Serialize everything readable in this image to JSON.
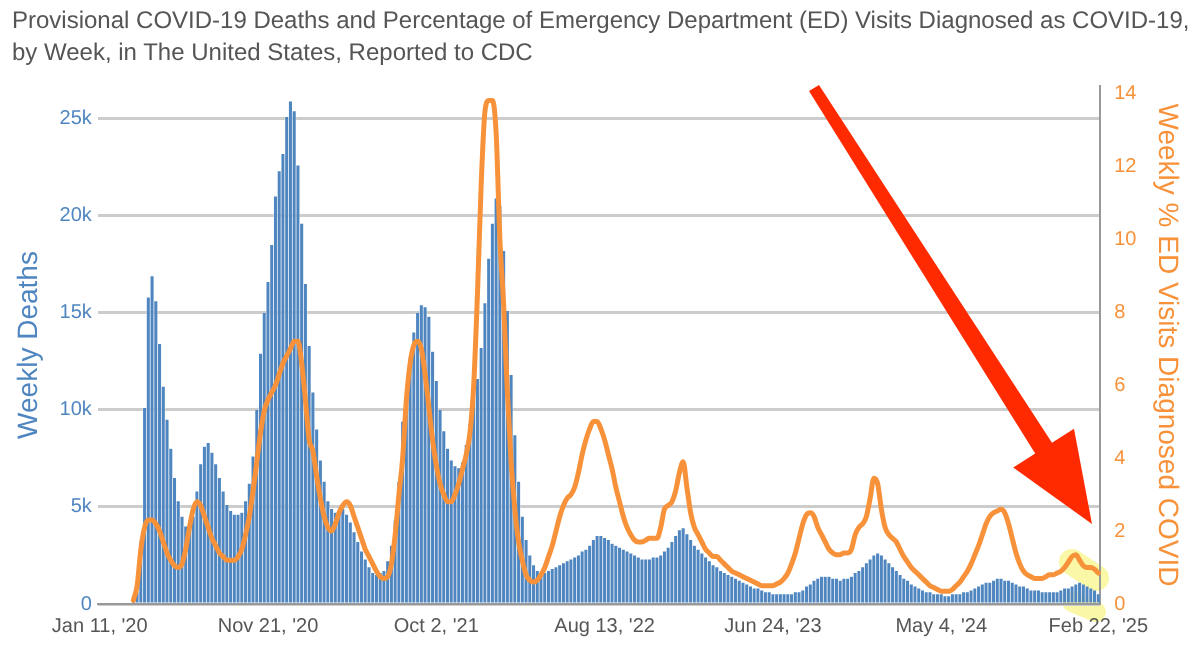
{
  "chart_data": {
    "type": "bar",
    "title": "Provisional COVID-19 Deaths and Percentage of Emergency Department (ED) Visits Diagnosed as COVID-19, by Week, in The United States, Reported to CDC",
    "ylabel": "Weekly Deaths",
    "y2label": "Weekly % ED Visits Diagnosed COVID",
    "categories": [
      "Jan 11, '20",
      null,
      null,
      null,
      null,
      null,
      null,
      null,
      null,
      null,
      null,
      null,
      null,
      null,
      null,
      null,
      null,
      null,
      null,
      null,
      null,
      null,
      null,
      null,
      null,
      null,
      null,
      null,
      null,
      null,
      null,
      null,
      null,
      null,
      null,
      null,
      null,
      null,
      null,
      null,
      null,
      null,
      null,
      null,
      null,
      "Nov 21, '20",
      null,
      null,
      null,
      null,
      null,
      null,
      null,
      null,
      null,
      null,
      null,
      null,
      null,
      null,
      null,
      null,
      null,
      null,
      null,
      null,
      null,
      null,
      null,
      null,
      null,
      null,
      null,
      null,
      null,
      null,
      null,
      null,
      null,
      null,
      null,
      null,
      null,
      null,
      null,
      null,
      null,
      null,
      null,
      null,
      "Oct 2, '21",
      null,
      null,
      null,
      null,
      null,
      null,
      null,
      null,
      null,
      null,
      null,
      null,
      null,
      null,
      null,
      null,
      null,
      null,
      null,
      null,
      null,
      null,
      null,
      null,
      null,
      null,
      null,
      null,
      null,
      null,
      null,
      null,
      null,
      null,
      null,
      null,
      null,
      null,
      null,
      null,
      null,
      null,
      null,
      null,
      "Aug 13, '22",
      null,
      null,
      null,
      null,
      null,
      null,
      null,
      null,
      null,
      null,
      null,
      null,
      null,
      null,
      null,
      null,
      null,
      null,
      null,
      null,
      null,
      null,
      null,
      null,
      null,
      null,
      null,
      null,
      null,
      null,
      null,
      null,
      null,
      null,
      null,
      null,
      null,
      null,
      null,
      null,
      null,
      null,
      null,
      null,
      "Jun 24, '23",
      null,
      null,
      null,
      null,
      null,
      null,
      null,
      null,
      null,
      null,
      null,
      null,
      null,
      null,
      null,
      null,
      null,
      null,
      null,
      null,
      null,
      null,
      null,
      null,
      null,
      null,
      null,
      null,
      null,
      null,
      null,
      null,
      null,
      null,
      null,
      null,
      null,
      null,
      null,
      null,
      null,
      null,
      null,
      null,
      "May 4, '24",
      null,
      null,
      null,
      null,
      null,
      null,
      null,
      null,
      null,
      null,
      null,
      null,
      null,
      null,
      null,
      null,
      null,
      null,
      null,
      null,
      null,
      null,
      null,
      null,
      null,
      null,
      null,
      null,
      null,
      null,
      null,
      null,
      null,
      null,
      null,
      null,
      null,
      null,
      null,
      null,
      null,
      "Feb 22, '25"
    ],
    "series": [
      {
        "color": "#4f86c0",
        "values": [
          0,
          0,
          0,
          0,
          0,
          0,
          0,
          0,
          0,
          100,
          600,
          3200,
          10100,
          15800,
          16900,
          15600,
          13400,
          11200,
          9500,
          8000,
          6500,
          5300,
          4500,
          4000,
          3900,
          4500,
          5800,
          7200,
          8100,
          8300,
          7800,
          7200,
          6500,
          5800,
          5100,
          4800,
          4600,
          4600,
          4700,
          5300,
          6200,
          7600,
          10000,
          12900,
          15000,
          16600,
          18500,
          21000,
          22300,
          23200,
          25100,
          25900,
          25400,
          22600,
          19600,
          16500,
          13300,
          10900,
          9000,
          7400,
          6300,
          5300,
          4900,
          4700,
          4800,
          4900,
          4600,
          4200,
          3700,
          3200,
          2700,
          2300,
          1900,
          1600,
          1500,
          1600,
          1700,
          2200,
          3000,
          4300,
          6300,
          9400,
          10800,
          12700,
          14000,
          15000,
          15400,
          15300,
          14800,
          13000,
          11500,
          10000,
          8900,
          8000,
          7400,
          7100,
          7000,
          7300,
          8200,
          9300,
          10500,
          11600,
          13200,
          15500,
          17800,
          19600,
          20900,
          20500,
          18200,
          15100,
          11800,
          8700,
          6300,
          4500,
          3300,
          2500,
          2000,
          1700,
          1600,
          1600,
          1700,
          1800,
          1900,
          2000,
          2100,
          2200,
          2300,
          2400,
          2500,
          2700,
          2800,
          3000,
          3300,
          3500,
          3500,
          3400,
          3300,
          3100,
          3000,
          2900,
          2800,
          2700,
          2600,
          2500,
          2400,
          2300,
          2300,
          2300,
          2400,
          2400,
          2500,
          2700,
          2900,
          3200,
          3500,
          3800,
          3900,
          3600,
          3300,
          3000,
          2800,
          2600,
          2400,
          2200,
          2000,
          1900,
          1700,
          1600,
          1500,
          1400,
          1300,
          1200,
          1100,
          1000,
          900,
          800,
          800,
          700,
          600,
          600,
          500,
          500,
          500,
          500,
          500,
          500,
          600,
          600,
          700,
          900,
          1000,
          1200,
          1300,
          1400,
          1400,
          1400,
          1300,
          1300,
          1200,
          1300,
          1300,
          1400,
          1600,
          1700,
          1900,
          2100,
          2300,
          2500,
          2600,
          2500,
          2300,
          2100,
          1900,
          1700,
          1500,
          1300,
          1200,
          1000,
          900,
          800,
          700,
          600,
          600,
          500,
          500,
          500,
          400,
          400,
          500,
          500,
          500,
          600,
          600,
          700,
          800,
          900,
          1000,
          1100,
          1100,
          1200,
          1300,
          1300,
          1200,
          1200,
          1100,
          1000,
          900,
          900,
          800,
          700,
          700,
          700,
          600,
          600,
          600,
          600,
          600,
          700,
          800,
          800,
          900,
          1000,
          1100,
          1000,
          900,
          800,
          700,
          500
        ]
      },
      {
        "type": "line",
        "axis": "y2",
        "color": "#f7923a",
        "values": [
          null,
          null,
          null,
          null,
          null,
          null,
          null,
          null,
          null,
          0.1,
          0.5,
          1.5,
          2.1,
          2.3,
          2.3,
          2.2,
          2.0,
          1.7,
          1.4,
          1.2,
          1.05,
          1.0,
          1.1,
          1.5,
          2.1,
          2.6,
          2.8,
          2.7,
          2.4,
          2.1,
          1.8,
          1.6,
          1.4,
          1.3,
          1.2,
          1.2,
          1.2,
          1.3,
          1.5,
          1.9,
          2.4,
          3.1,
          3.9,
          4.7,
          5.3,
          5.6,
          5.8,
          6.0,
          6.3,
          6.6,
          6.8,
          7.0,
          7.2,
          7.2,
          6.6,
          5.6,
          4.5,
          4.2,
          3.5,
          2.9,
          2.4,
          2.1,
          2.0,
          2.2,
          2.5,
          2.7,
          2.8,
          2.7,
          2.4,
          2.1,
          1.8,
          1.5,
          1.3,
          1.1,
          0.9,
          0.75,
          0.7,
          0.75,
          1.1,
          1.9,
          3.0,
          4.0,
          5.6,
          6.6,
          7.1,
          7.2,
          7.0,
          6.3,
          5.4,
          4.5,
          3.8,
          3.3,
          3.0,
          2.8,
          2.8,
          3.0,
          3.3,
          3.7,
          4.1,
          4.7,
          6.0,
          8.5,
          11.5,
          13.5,
          13.8,
          13.8,
          12.9,
          10.0,
          8.2,
          5.8,
          3.9,
          2.6,
          1.7,
          1.2,
          0.8,
          0.65,
          0.6,
          0.65,
          0.8,
          1.0,
          1.3,
          1.6,
          2.0,
          2.4,
          2.7,
          2.9,
          3.0,
          3.2,
          3.6,
          4.1,
          4.5,
          4.8,
          5.0,
          5.0,
          4.8,
          4.5,
          4.1,
          3.7,
          3.2,
          2.8,
          2.4,
          2.1,
          1.9,
          1.75,
          1.7,
          1.7,
          1.75,
          1.8,
          1.8,
          1.8,
          2.1,
          2.6,
          2.7,
          2.8,
          3.1,
          3.6,
          3.9,
          3.2,
          2.5,
          2.1,
          1.9,
          1.7,
          1.5,
          1.4,
          1.3,
          1.3,
          1.2,
          1.1,
          1.0,
          0.9,
          0.85,
          0.8,
          0.75,
          0.7,
          0.65,
          0.6,
          0.55,
          0.5,
          0.5,
          0.5,
          0.5,
          0.55,
          0.6,
          0.7,
          0.85,
          1.1,
          1.4,
          1.8,
          2.2,
          2.45,
          2.5,
          2.4,
          2.1,
          1.9,
          1.7,
          1.5,
          1.4,
          1.35,
          1.35,
          1.4,
          1.4,
          1.5,
          1.9,
          2.1,
          2.2,
          2.4,
          2.9,
          3.45,
          3.3,
          2.6,
          2.1,
          1.9,
          1.8,
          1.7,
          1.5,
          1.3,
          1.15,
          1.0,
          0.9,
          0.8,
          0.7,
          0.6,
          0.5,
          0.45,
          0.4,
          0.35,
          0.35,
          0.35,
          0.4,
          0.5,
          0.6,
          0.75,
          0.9,
          1.1,
          1.35,
          1.6,
          1.9,
          2.2,
          2.4,
          2.5,
          2.55,
          2.6,
          2.5,
          2.2,
          1.8,
          1.4,
          1.1,
          0.9,
          0.8,
          0.75,
          0.7,
          0.7,
          0.7,
          0.75,
          0.8,
          0.8,
          0.85,
          0.9,
          1.0,
          1.15,
          1.3,
          1.35,
          1.2,
          1.05,
          1.0,
          1.0,
          0.95,
          0.85
        ]
      }
    ],
    "ylim": [
      0,
      26700
    ],
    "yticks": [
      0,
      {
        "value": 5000,
        "label": "5k"
      },
      {
        "value": 10000,
        "label": "10k"
      },
      {
        "value": 15000,
        "label": "15k"
      },
      {
        "value": 20000,
        "label": "20k"
      },
      {
        "value": 25000,
        "label": "25k"
      }
    ],
    "y2lim": [
      0,
      14.2
    ],
    "y2ticks": [
      0,
      2,
      4,
      6,
      8,
      10,
      12,
      14
    ],
    "grid": "y",
    "marker": "none",
    "line_style": "solid"
  }
}
